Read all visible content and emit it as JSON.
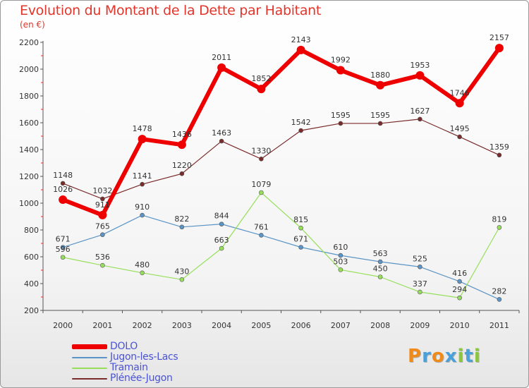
{
  "chart_data": {
    "type": "line",
    "title": "Evolution du Montant de la Dette par Habitant",
    "subtitle": "(en €)",
    "x": [
      "2000",
      "2001",
      "2002",
      "2003",
      "2004",
      "2005",
      "2006",
      "2007",
      "2008",
      "2009",
      "2010",
      "2011"
    ],
    "ylim": [
      200,
      2200
    ],
    "yticks": [
      200,
      400,
      600,
      800,
      1000,
      1200,
      1400,
      1600,
      1800,
      2000,
      2200
    ],
    "grid": false,
    "legend_position": "bottom-left",
    "series": [
      {
        "name": "DOLO",
        "color": "#ee0000",
        "values": [
          1026,
          911,
          1478,
          1436,
          2011,
          1852,
          2143,
          1992,
          1880,
          1953,
          1746,
          2157
        ]
      },
      {
        "name": "Jugon-les-Lacs",
        "color": "#5b94c6",
        "values": [
          671,
          765,
          910,
          822,
          844,
          761,
          671,
          610,
          563,
          525,
          416,
          282
        ]
      },
      {
        "name": "Tramain",
        "color": "#97df5b",
        "values": [
          596,
          536,
          480,
          430,
          663,
          1079,
          815,
          503,
          450,
          337,
          294,
          819
        ]
      },
      {
        "name": "Plénée-Jugon",
        "color": "#7a2b2b",
        "values": [
          1148,
          1032,
          1141,
          1220,
          1463,
          1330,
          1542,
          1595,
          1595,
          1627,
          1495,
          1359
        ]
      }
    ]
  },
  "logo": {
    "letters": [
      "P",
      "r",
      "o",
      "x",
      "i",
      "t",
      "i"
    ],
    "colors": [
      "#f08b1a",
      "#4aa0d8",
      "#f08b1a",
      "#4aa0d8",
      "#8cc63f",
      "#4aa0d8",
      "#8cc63f"
    ]
  }
}
